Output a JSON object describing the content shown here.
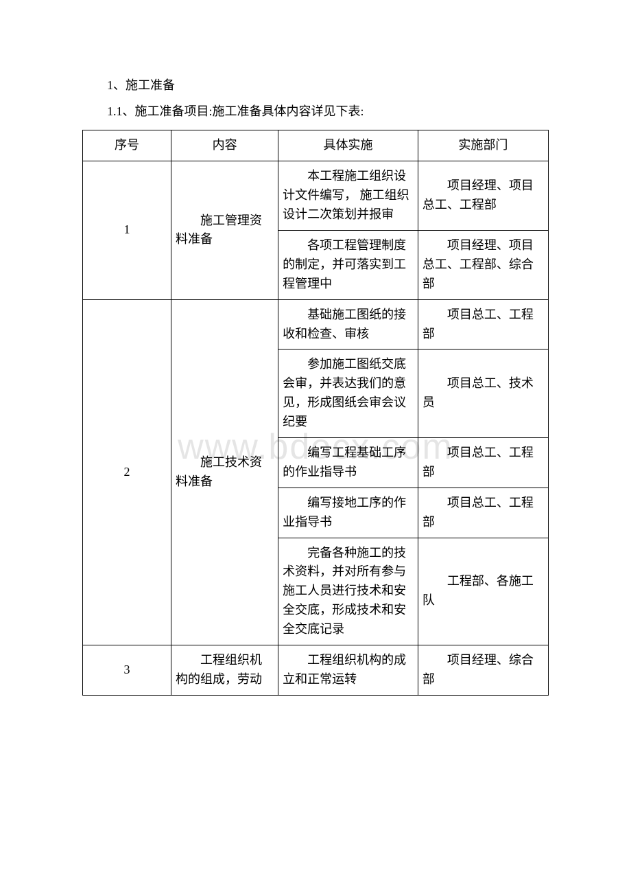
{
  "watermark": "www.bdocx.com",
  "paragraphs": {
    "p1": "1、施工准备",
    "p2": "1.1、施工准备项目:施工准备具体内容详见下表:"
  },
  "table": {
    "columns": [
      "序号",
      "内容",
      "具体实施",
      "实施部门"
    ],
    "groups": [
      {
        "seq": "1",
        "content": "施工管理资料准备",
        "items": [
          {
            "impl": "本工程施工组织设计文件编写， 施工组织设计二次策划并报审",
            "dept": "项目经理、项目总工、工程部"
          },
          {
            "impl": "各项工程管理制度的制定，并可落实到工程管理中",
            "dept": "项目经理、项目总工、工程部、综合部"
          }
        ]
      },
      {
        "seq": "2",
        "content": "施工技术资料准备",
        "items": [
          {
            "impl": "基础施工图纸的接收和检查、审核",
            "dept": "项目总工、工程部"
          },
          {
            "impl": "参加施工图纸交底会审，并表达我们的意见，形成图纸会审会议纪要",
            "dept": "项目总工、技术员"
          },
          {
            "impl": "编写工程基础工序的作业指导书",
            "dept": "项目总工、工程部"
          },
          {
            "impl": "编写接地工序的作业指导书",
            "dept": "项目总工、工程部"
          },
          {
            "impl": "完备各种施工的技术资料，并对所有参与施工人员进行技术和安全交底，形成技术和安全交底记录",
            "dept": "工程部、各施工队"
          }
        ]
      },
      {
        "seq": "3",
        "content": "工程组织机构的组成，劳动",
        "items": [
          {
            "impl": "工程组织机构的成立和正常运转",
            "dept": "项目经理、综合部"
          }
        ]
      }
    ]
  }
}
